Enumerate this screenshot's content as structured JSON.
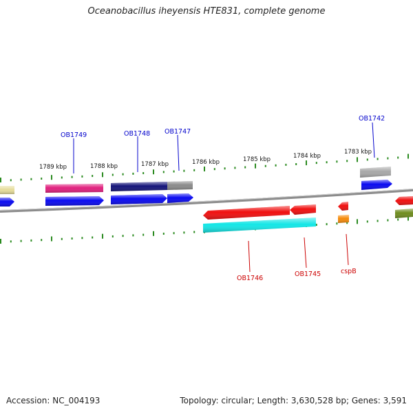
{
  "title": "Oceanobacillus iheyensis HTE831, complete genome",
  "accession_text": "Accession: NC_004193",
  "topology_text": "Topology: circular; Length: 3,630,528 bp; Genes: 3,591",
  "colors": {
    "backbone": "#8c8c8c",
    "tick": "#2a8a1f",
    "forward_label": "#0000cc",
    "reverse_label": "#cc0000",
    "kbp_label": "#111111"
  },
  "kbp_markers": [
    {
      "label": "1789 kbp"
    },
    {
      "label": "1788 kbp"
    },
    {
      "label": "1787 kbp"
    },
    {
      "label": "1786 kbp"
    },
    {
      "label": "1785 kbp"
    },
    {
      "label": "1784 kbp"
    },
    {
      "label": "1783 kbp"
    }
  ],
  "gene_labels": [
    {
      "name": "OB1749",
      "strand": "forward"
    },
    {
      "name": "OB1748",
      "strand": "forward"
    },
    {
      "name": "OB1747",
      "strand": "forward"
    },
    {
      "name": "OB1742",
      "strand": "forward"
    },
    {
      "name": "OB1746",
      "strand": "reverse"
    },
    {
      "name": "OB1745",
      "strand": "reverse"
    },
    {
      "name": "cspB",
      "strand": "reverse"
    }
  ],
  "feature_colors": {
    "pale_yellow": "#e6dc9a",
    "pink": "#e0207e",
    "dark_navy": "#15157a",
    "gray": "#8a8a8a",
    "blue": "#0a0af0",
    "red": "#f01010",
    "cyan": "#14e6e6",
    "orange": "#f58a0a",
    "olive": "#6e8c1e",
    "light_gray": "#a8a8a8"
  }
}
